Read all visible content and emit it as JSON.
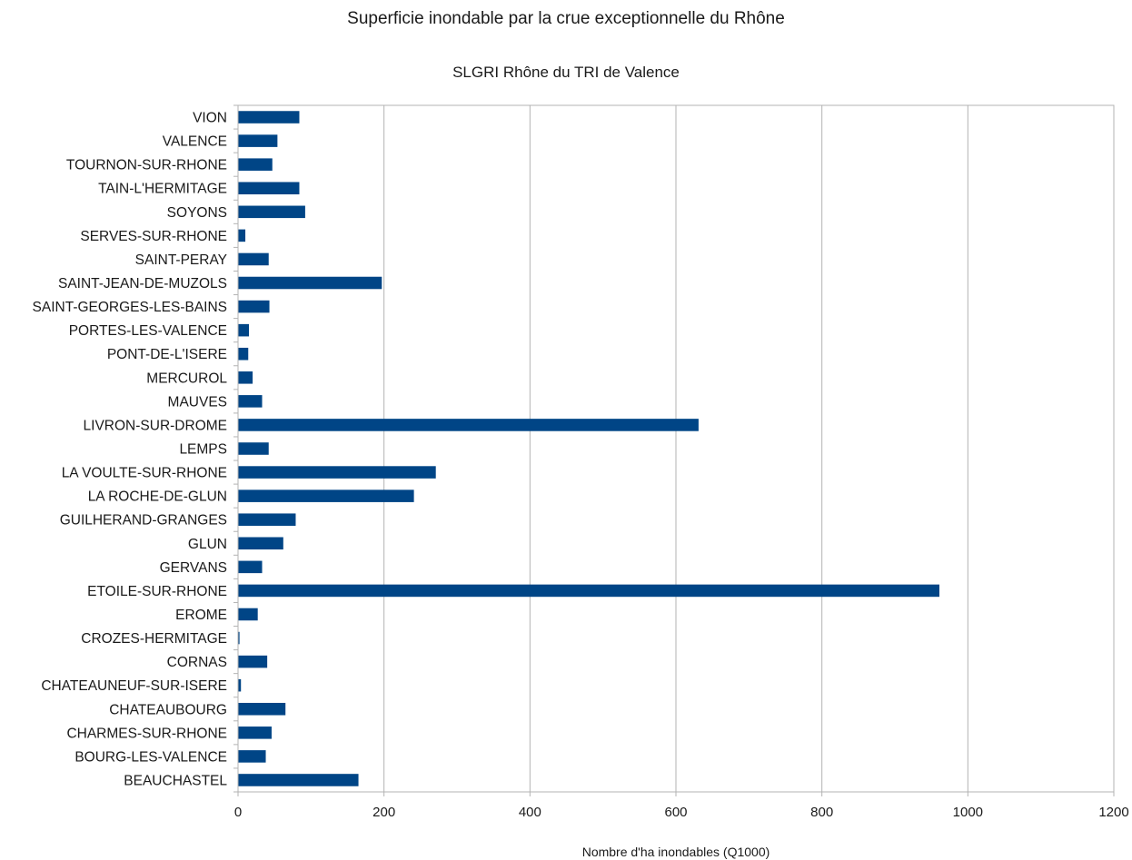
{
  "chart_data": {
    "type": "bar",
    "orientation": "horizontal",
    "title": "Superficie inondable par la crue exceptionnelle du Rhône",
    "subtitle": "SLGRI Rhône du TRI de Valence",
    "xlabel": "Nombre d'ha inondables (Q1000)",
    "ylabel": "",
    "xlim": [
      0,
      1200
    ],
    "xticks": [
      0,
      200,
      400,
      600,
      800,
      1000,
      1200
    ],
    "grid": "vertical",
    "bar_color": "#004586",
    "categories": [
      "VION",
      "VALENCE",
      "TOURNON-SUR-RHONE",
      "TAIN-L'HERMITAGE",
      "SOYONS",
      "SERVES-SUR-RHONE",
      "SAINT-PERAY",
      "SAINT-JEAN-DE-MUZOLS",
      "SAINT-GEORGES-LES-BAINS",
      "PORTES-LES-VALENCE",
      "PONT-DE-L'ISERE",
      "MERCUROL",
      "MAUVES",
      "LIVRON-SUR-DROME",
      "LEMPS",
      "LA VOULTE-SUR-RHONE",
      "LA ROCHE-DE-GLUN",
      "GUILHERAND-GRANGES",
      "GLUN",
      "GERVANS",
      "ETOILE-SUR-RHONE",
      "EROME",
      "CROZES-HERMITAGE",
      "CORNAS",
      "CHATEAUNEUF-SUR-ISERE",
      "CHATEAUBOURG",
      "CHARMES-SUR-RHONE",
      "BOURG-LES-VALENCE",
      "BEAUCHASTEL"
    ],
    "values": [
      84,
      54,
      47,
      84,
      92,
      10,
      42,
      197,
      43,
      15,
      14,
      20,
      33,
      631,
      42,
      271,
      241,
      79,
      62,
      33,
      961,
      27,
      2,
      40,
      4,
      65,
      46,
      38,
      165
    ]
  }
}
